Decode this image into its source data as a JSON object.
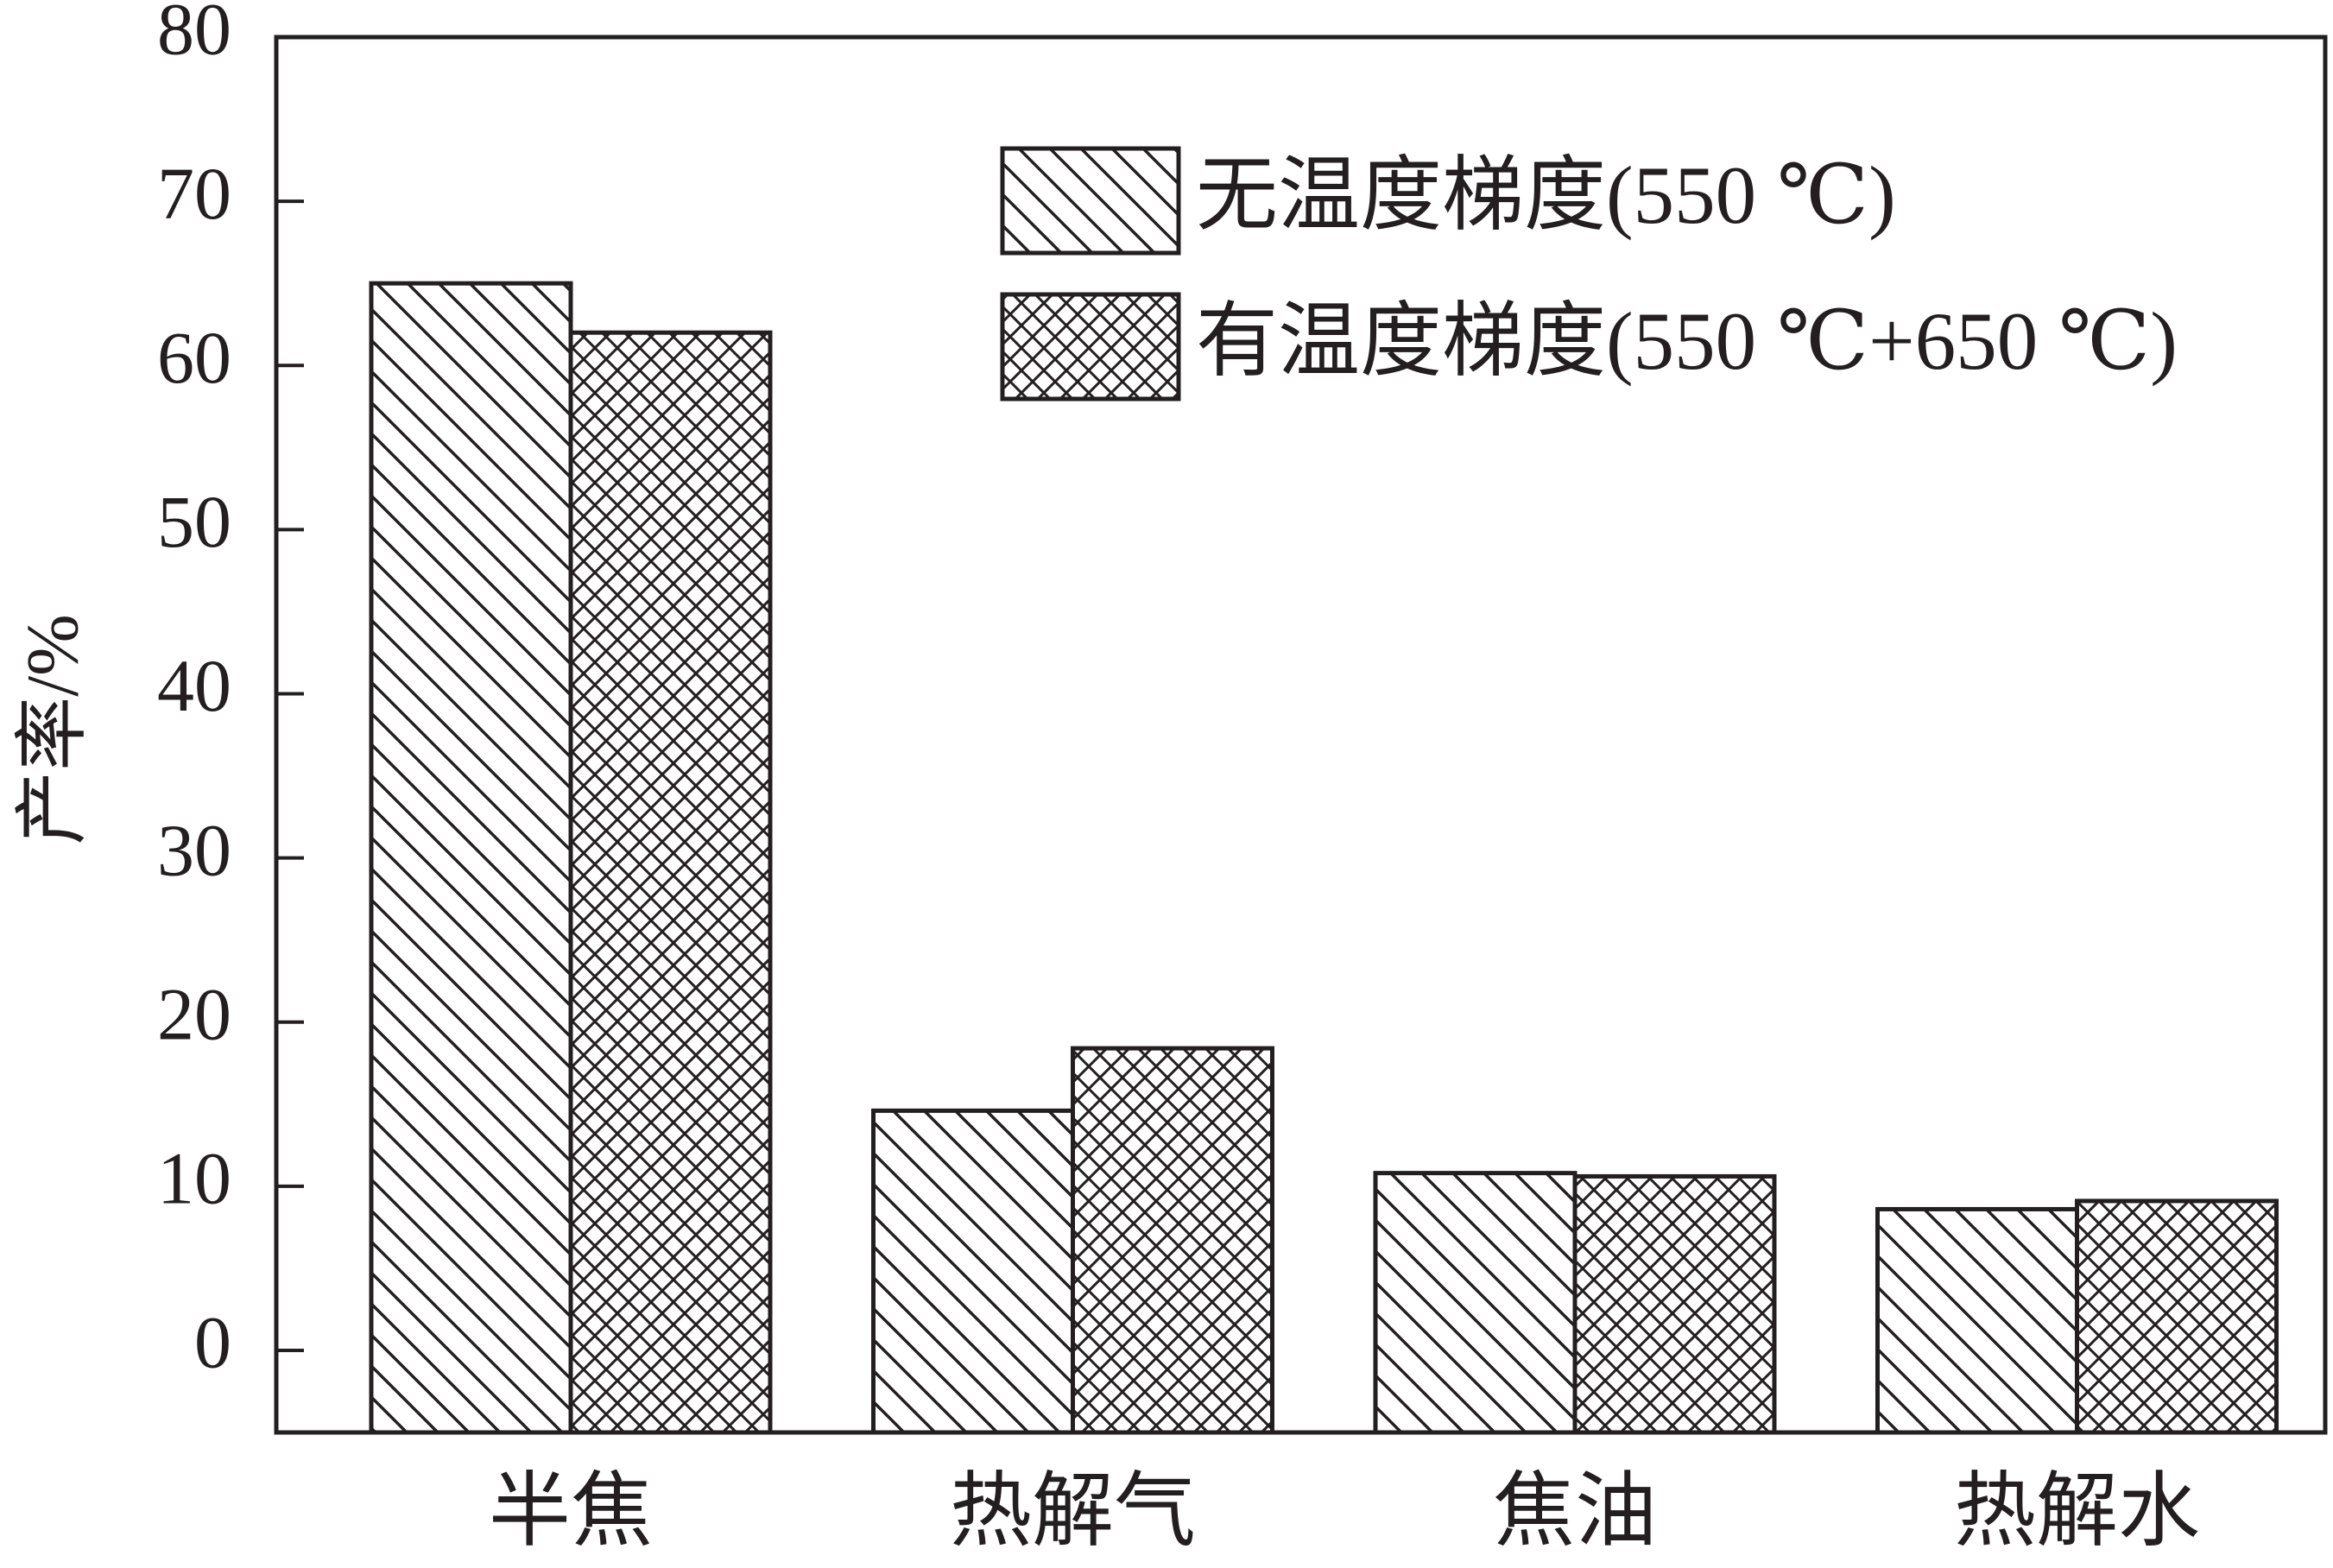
{
  "chart_data": {
    "type": "bar",
    "y_label": "产率/%",
    "categories": [
      "半焦",
      "热解气",
      "焦油",
      "热解水"
    ],
    "series": [
      {
        "name": "无温度梯度(550 ℃)",
        "color": "#231f20",
        "hatch": "diagonal",
        "values": [
          65,
          14.6,
          10.8,
          8.6
        ]
      },
      {
        "name": "有温度梯度(550 ℃+650 ℃)",
        "color": "#231f20",
        "hatch": "crosshatch",
        "values": [
          62,
          18.4,
          10.6,
          9.1
        ]
      }
    ],
    "ylim": [
      -5,
      80
    ],
    "yticks": [
      0,
      10,
      20,
      30,
      40,
      50,
      60,
      70,
      80
    ],
    "grid": false,
    "legend": "upper right"
  }
}
